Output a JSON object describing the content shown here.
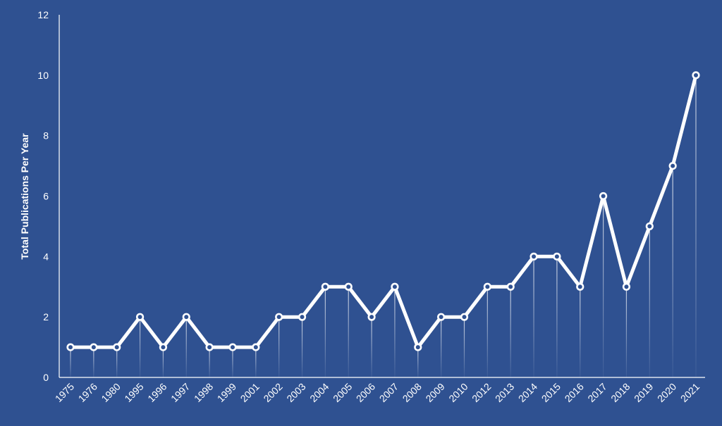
{
  "colors": {
    "background": "#2f5191",
    "line": "#ffffff",
    "axis": "#ffffff"
  },
  "chart_data": {
    "type": "line",
    "title": "",
    "xlabel": "",
    "ylabel": "Total Publications Per Year",
    "ylim": [
      0,
      12
    ],
    "yticks": [
      "0",
      "2",
      "4",
      "6",
      "8",
      "10",
      "12"
    ],
    "grid": false,
    "legend": "none",
    "categories": [
      "1975",
      "1976",
      "1980",
      "1995",
      "1996",
      "1997",
      "1998",
      "1999",
      "2001",
      "2002",
      "2003",
      "2004",
      "2005",
      "2006",
      "2007",
      "2008",
      "2009",
      "2010",
      "2012",
      "2013",
      "2014",
      "2015",
      "2016",
      "2017",
      "2018",
      "2019",
      "2020",
      "2021"
    ],
    "series": [
      {
        "values": [
          1,
          1,
          1,
          2,
          1,
          2,
          1,
          1,
          1,
          2,
          2,
          3,
          3,
          2,
          3,
          1,
          2,
          2,
          3,
          3,
          4,
          4,
          3,
          6,
          3,
          5,
          7,
          10
        ]
      }
    ]
  }
}
